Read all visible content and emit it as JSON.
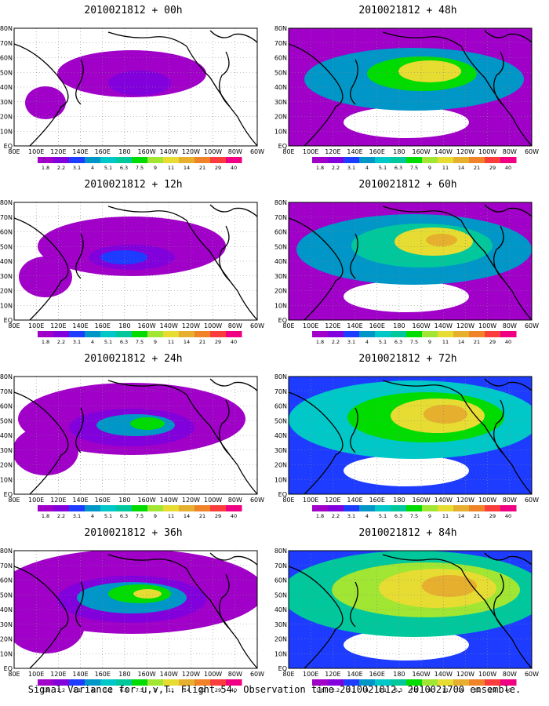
{
  "figure": {
    "caption": "Signal Variance for u,v,T. Flight 54. Observation time 2010021812. 2010021700 ensemble.",
    "lat_labels": [
      "80N",
      "70N",
      "60N",
      "50N",
      "40N",
      "30N",
      "20N",
      "10N",
      "EQ"
    ],
    "lon_labels": [
      "80E",
      "100E",
      "120E",
      "140E",
      "160E",
      "180",
      "160W",
      "140W",
      "120W",
      "100W",
      "80W",
      "60W"
    ],
    "colorbar": {
      "values": [
        "1.8",
        "2.2",
        "3.1",
        "4",
        "5.1",
        "6.3",
        "7.5",
        "9",
        "11",
        "14",
        "21",
        "29",
        "40"
      ],
      "colors": [
        "#a000c8",
        "#8200dc",
        "#1e3cff",
        "#0096c8",
        "#00c8c8",
        "#00c89c",
        "#00dc00",
        "#a0e632",
        "#e6dc32",
        "#e6af2d",
        "#f08228",
        "#fa3c3c",
        "#f00082"
      ]
    },
    "panels": [
      {
        "title": "2010021812 + 00h",
        "intensity": 1
      },
      {
        "title": "2010021812 + 48h",
        "intensity": 5
      },
      {
        "title": "2010021812 + 12h",
        "intensity": 2
      },
      {
        "title": "2010021812 + 60h",
        "intensity": 6
      },
      {
        "title": "2010021812 + 24h",
        "intensity": 3
      },
      {
        "title": "2010021812 + 72h",
        "intensity": 7
      },
      {
        "title": "2010021812 + 36h",
        "intensity": 4
      },
      {
        "title": "2010021812 + 84h",
        "intensity": 8
      }
    ]
  }
}
